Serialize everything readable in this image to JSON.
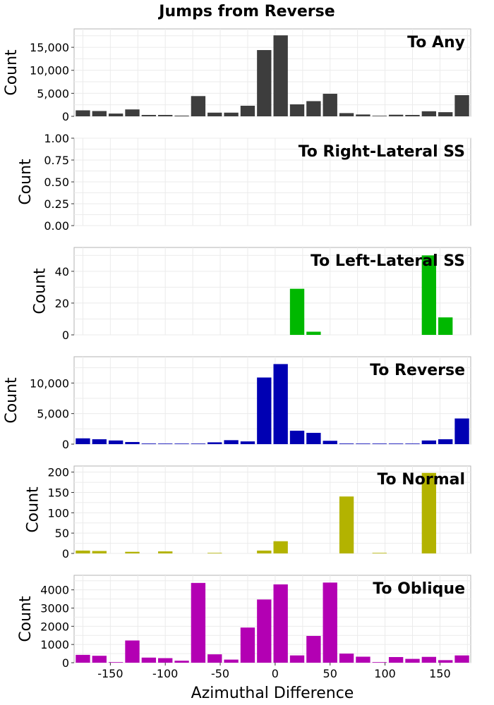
{
  "title": "Jumps from Reverse",
  "xlabel": "Azimuthal Difference",
  "x_ticks": [
    -150,
    -100,
    -50,
    0,
    50,
    100,
    150
  ],
  "chart_data": [
    {
      "type": "bar",
      "label": "To Any",
      "color": "#3d3d3d",
      "ylabel": "Count",
      "ylim": [
        0,
        19000
      ],
      "y_ticks": [
        0,
        5000,
        10000,
        15000
      ],
      "y_tick_labels": [
        "0",
        "5,000",
        "10,000",
        "15,000"
      ],
      "x": [
        -175,
        -160,
        -145,
        -130,
        -115,
        -100,
        -85,
        -70,
        -55,
        -40,
        -25,
        -10,
        5,
        20,
        35,
        50,
        65,
        80,
        95,
        110,
        125,
        140,
        155,
        170
      ],
      "values": [
        1300,
        1150,
        600,
        1500,
        300,
        300,
        150,
        4400,
        800,
        800,
        2300,
        14400,
        17600,
        2600,
        3300,
        4900,
        700,
        400,
        100,
        350,
        300,
        1100,
        900,
        4600
      ]
    },
    {
      "type": "bar",
      "label": "To Right-Lateral SS",
      "color": "#888888",
      "ylabel": "Count",
      "ylim": [
        0,
        1
      ],
      "y_ticks": [
        0,
        0.25,
        0.5,
        0.75,
        1
      ],
      "y_tick_labels": [
        "0.00",
        "0.25",
        "0.50",
        "0.75",
        "1.00"
      ],
      "x": [],
      "values": []
    },
    {
      "type": "bar",
      "label": "To Left-Lateral SS",
      "color": "#00b800",
      "ylabel": "Count",
      "ylim": [
        0,
        55
      ],
      "y_ticks": [
        0,
        20,
        40
      ],
      "y_tick_labels": [
        "0",
        "20",
        "40"
      ],
      "x": [
        20,
        35,
        140,
        155
      ],
      "values": [
        29,
        2,
        50,
        11
      ]
    },
    {
      "type": "bar",
      "label": "To Reverse",
      "color": "#0000b3",
      "ylabel": "Count",
      "ylim": [
        0,
        14300
      ],
      "y_ticks": [
        0,
        5000,
        10000
      ],
      "y_tick_labels": [
        "0",
        "5,000",
        "10,000"
      ],
      "x": [
        -175,
        -160,
        -145,
        -130,
        -115,
        -100,
        -85,
        -70,
        -55,
        -40,
        -25,
        -10,
        5,
        20,
        35,
        50,
        65,
        80,
        95,
        110,
        125,
        140,
        155,
        170
      ],
      "values": [
        950,
        800,
        600,
        350,
        100,
        50,
        50,
        50,
        300,
        650,
        450,
        10900,
        13100,
        2200,
        1850,
        550,
        100,
        50,
        80,
        30,
        50,
        600,
        800,
        4200
      ]
    },
    {
      "type": "bar",
      "label": "To Normal",
      "color": "#b3b300",
      "ylabel": "Count",
      "ylim": [
        0,
        215
      ],
      "y_ticks": [
        0,
        50,
        100,
        150,
        200
      ],
      "y_tick_labels": [
        "0",
        "50",
        "100",
        "150",
        "200"
      ],
      "x": [
        -175,
        -160,
        -130,
        -100,
        -55,
        -10,
        5,
        65,
        95,
        140
      ],
      "values": [
        7,
        6,
        4,
        5,
        1,
        7,
        30,
        140,
        1,
        198
      ]
    },
    {
      "type": "bar",
      "label": "To Oblique",
      "color": "#b300b3",
      "ylabel": "Count",
      "ylim": [
        0,
        4800
      ],
      "y_ticks": [
        0,
        1000,
        2000,
        3000,
        4000
      ],
      "y_tick_labels": [
        "0",
        "1000",
        "2000",
        "3000",
        "4000"
      ],
      "x": [
        -175,
        -160,
        -145,
        -130,
        -115,
        -100,
        -85,
        -70,
        -55,
        -40,
        -25,
        -10,
        5,
        20,
        35,
        50,
        65,
        80,
        95,
        110,
        125,
        140,
        155,
        170
      ],
      "values": [
        430,
        380,
        20,
        1220,
        280,
        250,
        110,
        4380,
        460,
        170,
        1930,
        3470,
        4300,
        400,
        1470,
        4400,
        500,
        330,
        20,
        310,
        210,
        320,
        140,
        400
      ]
    }
  ]
}
